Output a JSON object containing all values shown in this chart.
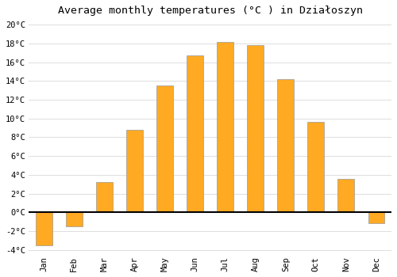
{
  "title": "Average monthly temperatures (°C ) in Działoszyn",
  "months": [
    "Jan",
    "Feb",
    "Mar",
    "Apr",
    "May",
    "Jun",
    "Jul",
    "Aug",
    "Sep",
    "Oct",
    "Nov",
    "Dec"
  ],
  "values": [
    -3.5,
    -1.5,
    3.2,
    8.8,
    13.5,
    16.7,
    18.2,
    17.8,
    14.2,
    9.6,
    3.6,
    -1.2
  ],
  "bar_color": "#FFAA22",
  "bar_edge_color": "#999999",
  "background_color": "#FFFFFF",
  "plot_bg_color": "#FFFFFF",
  "grid_color": "#DDDDDD",
  "ylim": [
    -4.5,
    20.5
  ],
  "yticks": [
    -4,
    -2,
    0,
    2,
    4,
    6,
    8,
    10,
    12,
    14,
    16,
    18,
    20
  ],
  "zero_line_color": "#000000",
  "title_fontsize": 9.5,
  "tick_fontsize": 7.5,
  "bar_width": 0.55
}
